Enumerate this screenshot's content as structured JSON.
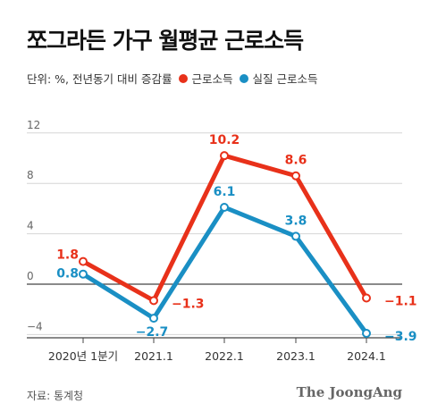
{
  "title": "쪼그라든 가구 월평균 근로소득",
  "unit_note": "단위: %, 전년동기 대비 증감률",
  "source": "자료: 통계청",
  "brand": "The JoongAng",
  "chart_data": {
    "type": "line",
    "categories": [
      "2020년 1분기",
      "2021.1",
      "2022.1",
      "2023.1",
      "2024.1"
    ],
    "ylim": [
      -6,
      14
    ],
    "yticks": [
      -4,
      0,
      4,
      8,
      12
    ],
    "grid": true,
    "legend_position": "top-left",
    "series": [
      {
        "name": "근로소득",
        "color": "#e8311a",
        "values": [
          1.8,
          -1.3,
          10.2,
          8.6,
          -1.1
        ],
        "labels": [
          "1.8",
          "−1.3",
          "10.2",
          "8.6",
          "−1.1"
        ]
      },
      {
        "name": "실질 근로소득",
        "color": "#1a8fc4",
        "values": [
          0.8,
          -2.7,
          6.1,
          3.8,
          -3.9
        ],
        "labels": [
          "0.8",
          "−2.7",
          "6.1",
          "3.8",
          "−3.9"
        ]
      }
    ]
  }
}
